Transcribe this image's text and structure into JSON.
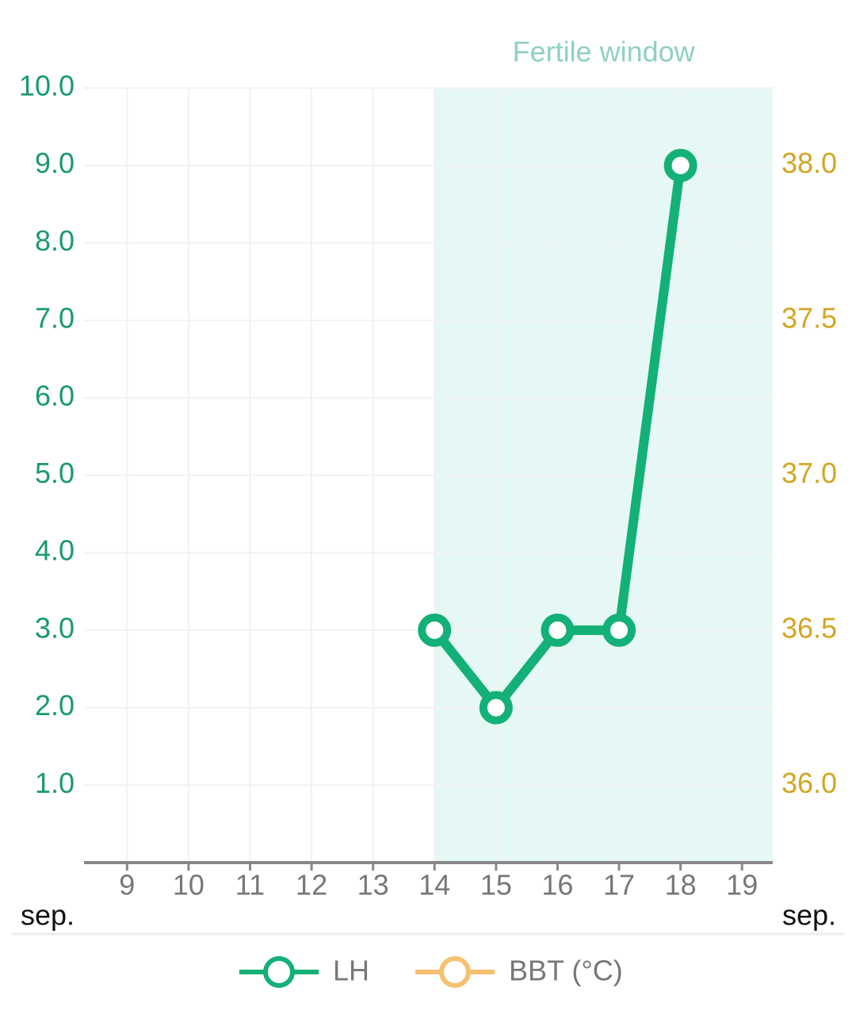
{
  "chart_data": {
    "type": "line",
    "annotation": {
      "label": "Fertile window",
      "start": 14,
      "end": 19.5,
      "color": "#e6f8f5",
      "text_color": "#8fd0c2"
    },
    "x_unit_label": "sep.",
    "xlim": [
      8.3,
      19.5
    ],
    "xticks": [
      9,
      10,
      11,
      12,
      13,
      14,
      15,
      16,
      17,
      18,
      19
    ],
    "ylim": [
      0,
      10
    ],
    "yticks": [
      {
        "value": 1,
        "label": "1.0"
      },
      {
        "value": 2,
        "label": "2.0"
      },
      {
        "value": 3,
        "label": "3.0"
      },
      {
        "value": 4,
        "label": "4.0"
      },
      {
        "value": 5,
        "label": "5.0"
      },
      {
        "value": 6,
        "label": "6.0"
      },
      {
        "value": 7,
        "label": "7.0"
      },
      {
        "value": 8,
        "label": "8.0"
      },
      {
        "value": 9,
        "label": "9.0"
      },
      {
        "value": 10,
        "label": "10.0"
      }
    ],
    "y2lim": [
      35.75,
      38.25
    ],
    "y2ticks": [
      {
        "value": 36,
        "label": "36.0"
      },
      {
        "value": 36.5,
        "label": "36.5"
      },
      {
        "value": 37,
        "label": "37.0"
      },
      {
        "value": 37.5,
        "label": "37.5"
      },
      {
        "value": 38,
        "label": "38.0"
      }
    ],
    "grid": true,
    "series": [
      {
        "name": "LH",
        "color": "#13b077",
        "tick_color": "#1a9a6c",
        "x": [
          14,
          15,
          16,
          17,
          18
        ],
        "values": [
          3,
          2,
          3,
          3,
          9
        ]
      },
      {
        "name": "BBT (°C)",
        "color": "#f5c06f",
        "tick_color": "#d4a520",
        "axis": "y2",
        "x": [],
        "values": []
      }
    ]
  }
}
